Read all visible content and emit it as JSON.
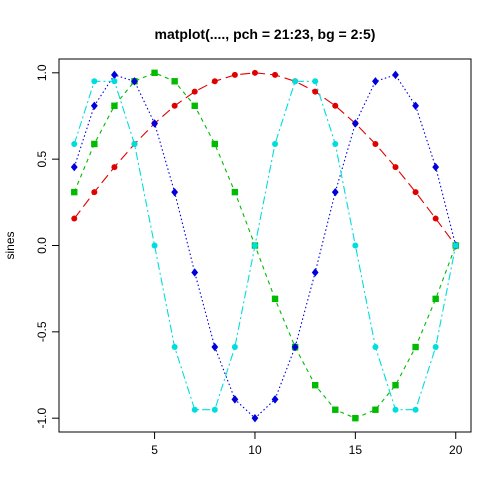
{
  "chart_data": {
    "type": "line",
    "title": "matplot(...., pch = 21:23, bg = 2:5)",
    "xlabel": "",
    "ylabel": "sines",
    "xlim": [
      0.24,
      20.76
    ],
    "ylim": [
      -1.08,
      1.08
    ],
    "x_ticks": [
      5,
      10,
      15,
      20
    ],
    "y_ticks": [
      -1.0,
      -0.5,
      0.0,
      0.5,
      1.0
    ],
    "x_tick_labels": [
      "5",
      "10",
      "15",
      "20"
    ],
    "y_tick_labels": [
      "-1.0",
      "-0.5",
      "0.0",
      "0.5",
      "1.0"
    ],
    "grid": false,
    "x": [
      1,
      2,
      3,
      4,
      5,
      6,
      7,
      8,
      9,
      10,
      11,
      12,
      13,
      14,
      15,
      16,
      17,
      18,
      19,
      20
    ],
    "series": [
      {
        "color": "#df0000",
        "marker": "circle",
        "dash": "10,5",
        "values": [
          0.156,
          0.309,
          0.454,
          0.588,
          0.707,
          0.809,
          0.891,
          0.951,
          0.988,
          1.0,
          0.988,
          0.951,
          0.891,
          0.809,
          0.707,
          0.588,
          0.454,
          0.309,
          0.156,
          0.0
        ]
      },
      {
        "color": "#00bb00",
        "marker": "square",
        "dash": "4,4",
        "values": [
          0.309,
          0.588,
          0.809,
          0.951,
          1.0,
          0.951,
          0.809,
          0.588,
          0.309,
          0.0,
          -0.309,
          -0.588,
          -0.809,
          -0.951,
          -1.0,
          -0.951,
          -0.809,
          -0.588,
          -0.309,
          0.0
        ]
      },
      {
        "color": "#0000dd",
        "marker": "diamond",
        "dash": "1.5,2.5",
        "values": [
          0.454,
          0.809,
          0.988,
          0.951,
          0.707,
          0.309,
          -0.156,
          -0.588,
          -0.891,
          -1.0,
          -0.891,
          -0.588,
          -0.156,
          0.309,
          0.707,
          0.951,
          0.988,
          0.809,
          0.454,
          0.0
        ]
      },
      {
        "color": "#00dddd",
        "marker": "circle",
        "dash": "8,3,2,3",
        "values": [
          0.588,
          0.951,
          0.951,
          0.588,
          0.0,
          -0.588,
          -0.951,
          -0.951,
          -0.588,
          0.0,
          0.588,
          0.951,
          0.951,
          0.588,
          0.0,
          -0.588,
          -0.951,
          -0.951,
          -0.588,
          0.0
        ]
      }
    ]
  }
}
